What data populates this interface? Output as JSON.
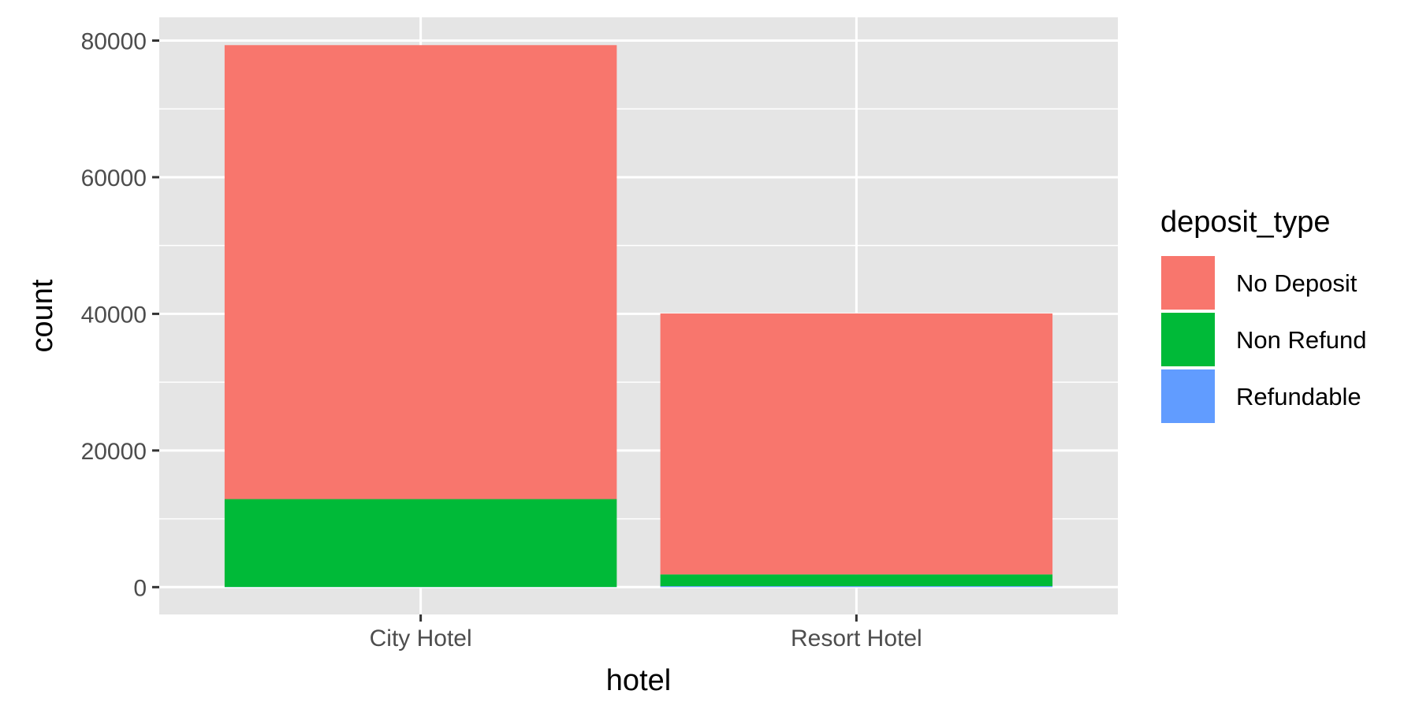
{
  "chart_data": {
    "type": "bar",
    "stacked": true,
    "categories": [
      "City Hotel",
      "Resort Hotel"
    ],
    "series": [
      {
        "name": "No Deposit",
        "color": "#F8766D",
        "values": [
          66442,
          38199
        ]
      },
      {
        "name": "Non Refund",
        "color": "#00BA38",
        "values": [
          12868,
          1719
        ]
      },
      {
        "name": "Refundable",
        "color": "#619CFF",
        "values": [
          20,
          142
        ]
      }
    ],
    "xlabel": "hotel",
    "ylabel": "count",
    "ylim": [
      -4000,
      83400
    ],
    "yticks": [
      0,
      20000,
      40000,
      60000,
      80000
    ],
    "grid": true,
    "legend": {
      "title": "deposit_type",
      "position": "right"
    },
    "colors": {
      "panel": "#E5E5E5",
      "grid": "#FFFFFF",
      "tick_text": "#4D4D4D"
    }
  }
}
